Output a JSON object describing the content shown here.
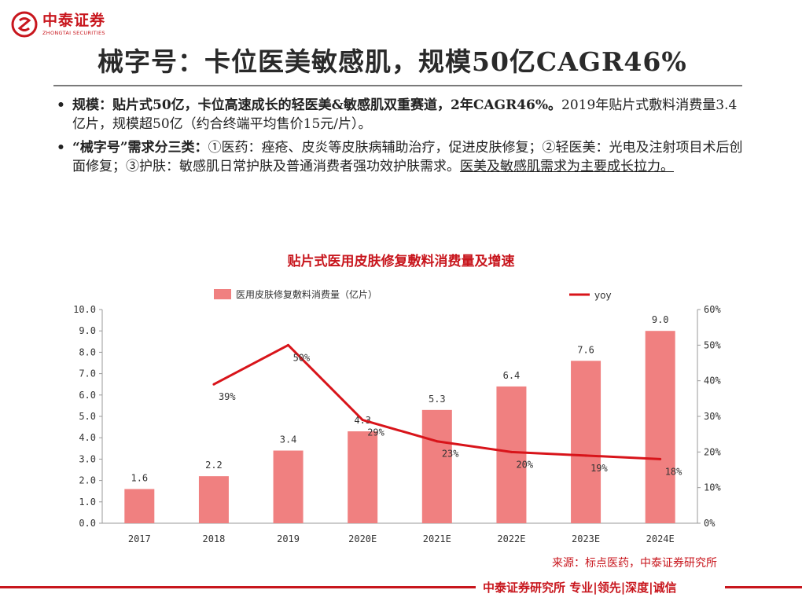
{
  "header": {
    "logo_cn": "中泰证券",
    "logo_en": "ZHONGTAI SECURITIES",
    "title": "械字号：卡位医美敏感肌，规模50亿CAGR46%"
  },
  "bullets": [
    {
      "bold": "规模：贴片式50亿，卡位高速成长的轻医美&敏感肌双重赛道，2年CAGR46%。",
      "text": "2019年贴片式敷料消费量3.4亿片，规模超50亿（约合终端平均售价15元/片）。",
      "underline": ""
    },
    {
      "bold": "“械字号”需求分三类：",
      "text": "①医药：痤疮、皮炎等皮肤病辅助治疗，促进皮肤修复；②轻医美：光电及注射项目术后创面修复；③护肤：敏感肌日常护肤及普通消费者强功效护肤需求。",
      "underline": "医美及敏感肌需求为主要成长拉力。"
    }
  ],
  "chart_data": {
    "type": "bar",
    "title": "贴片式医用皮肤修复敷料消费量及增速",
    "categories": [
      "2017",
      "2018",
      "2019",
      "2020E",
      "2021E",
      "2022E",
      "2023E",
      "2024E"
    ],
    "series": [
      {
        "name": "医用皮肤修复敷料消费量（亿片）",
        "type": "bar",
        "axis": "left",
        "values": [
          1.6,
          2.2,
          3.4,
          4.3,
          5.3,
          6.4,
          7.6,
          9.0
        ],
        "labels": [
          "1.6",
          "2.2",
          "3.4",
          "4.3",
          "5.3",
          "6.4",
          "7.6",
          "9.0"
        ]
      },
      {
        "name": "yoy",
        "type": "line",
        "axis": "right",
        "values": [
          null,
          39,
          50,
          29,
          23,
          20,
          19,
          18
        ],
        "labels": [
          "",
          "39%",
          "50%",
          "29%",
          "23%",
          "20%",
          "19%",
          "18%"
        ]
      }
    ],
    "y_left": {
      "min": 0,
      "max": 10,
      "step": 1,
      "ticks": [
        "0.0",
        "1.0",
        "2.0",
        "3.0",
        "4.0",
        "5.0",
        "6.0",
        "7.0",
        "8.0",
        "9.0",
        "10.0"
      ]
    },
    "y_right": {
      "min": 0,
      "max": 60,
      "step": 10,
      "ticks": [
        "0%",
        "10%",
        "20%",
        "30%",
        "40%",
        "50%",
        "60%"
      ]
    },
    "legend_position": "top",
    "colors": {
      "bar": "#f08080",
      "line": "#d8141a"
    }
  },
  "source": "来源：标点医药，中泰证券研究所",
  "footer": "中泰证券研究所 专业|领先|深度|诚信",
  "colors": {
    "brand": "#c8161d"
  }
}
